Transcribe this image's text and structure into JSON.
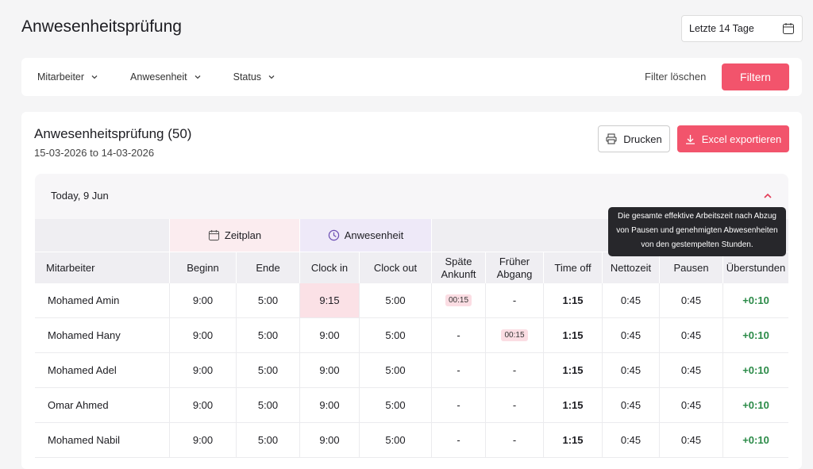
{
  "header": {
    "title": "Anwesenheitsprüfung",
    "date_range": "Letzte 14 Tage"
  },
  "filters": {
    "items": [
      "Mitarbeiter",
      "Anwesenheit",
      "Status"
    ],
    "clear": "Filter löschen",
    "apply": "Filtern"
  },
  "report": {
    "title": "Anwesenheitsprüfung (50)",
    "period": "15-03-2026 to 14-03-2026",
    "print": "Drucken",
    "export": "Excel exportieren"
  },
  "group": {
    "label": "Today, 9 Jun"
  },
  "tooltip": {
    "lines": [
      "Die gesamte effektive Arbeitszeit nach Abzug",
      "von Pausen und genehmigten Abwesenheiten",
      "von den gestempelten Stunden."
    ]
  },
  "table": {
    "groups": [
      "Zeitplan",
      "Anwesenheit"
    ],
    "columns": [
      "Mitarbeiter",
      "Beginn",
      "Ende",
      "Clock in",
      "Clock out",
      "Späte Ankunft",
      "Früher Abgang",
      "Time off",
      "Nettozeit",
      "Pausen",
      "Überstunden"
    ],
    "rows": [
      [
        "Mohamed Amin",
        "9:00",
        "5:00",
        "9:15",
        "5:00",
        "00:15",
        "-",
        "1:15",
        "0:45",
        "0:45",
        "+0:10"
      ],
      [
        "Mohamed Hany",
        "9:00",
        "5:00",
        "9:00",
        "5:00",
        "-",
        "00:15",
        "1:15",
        "0:45",
        "0:45",
        "+0:10"
      ],
      [
        "Mohamed Adel",
        "9:00",
        "5:00",
        "9:00",
        "5:00",
        "-",
        "-",
        "1:15",
        "0:45",
        "0:45",
        "+0:10"
      ],
      [
        "Omar Ahmed",
        "9:00",
        "5:00",
        "9:00",
        "5:00",
        "-",
        "-",
        "1:15",
        "0:45",
        "0:45",
        "+0:10"
      ],
      [
        "Mohamed Nabil",
        "9:00",
        "5:00",
        "9:00",
        "5:00",
        "-",
        "-",
        "1:15",
        "0:45",
        "0:45",
        "+0:10"
      ]
    ]
  }
}
